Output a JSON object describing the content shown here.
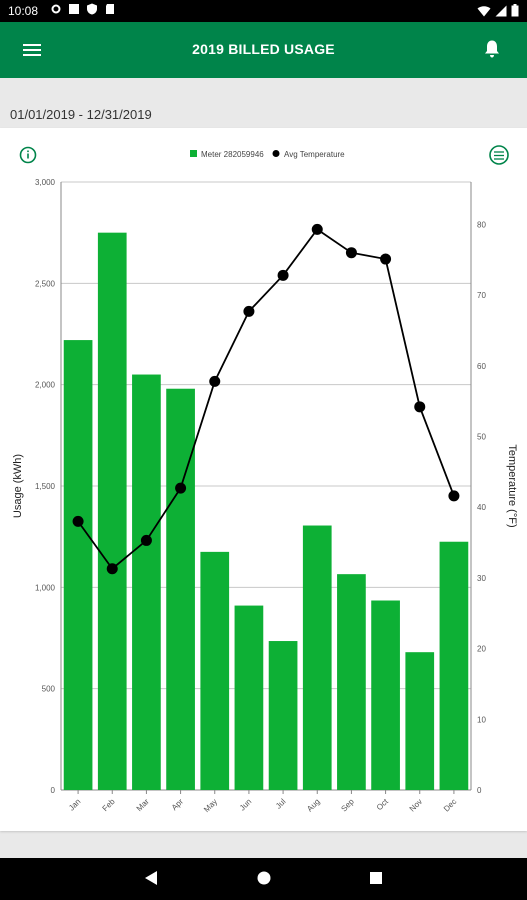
{
  "status_bar": {
    "time": "10:08"
  },
  "app_bar": {
    "title": "2019 BILLED USAGE"
  },
  "date_range": "01/01/2019 - 12/31/2019",
  "colors": {
    "brand": "#00844a",
    "bar": "#0db035",
    "line": "#000000"
  },
  "icons": {
    "menu": "menu-icon",
    "notifications": "bell-icon",
    "info": "info-icon",
    "chart_type": "chart-toggle-icon"
  },
  "chart_data": {
    "type": "bar",
    "categories": [
      "Jan",
      "Feb",
      "Mar",
      "Apr",
      "May",
      "Jun",
      "Jul",
      "Aug",
      "Sep",
      "Oct",
      "Nov",
      "Dec"
    ],
    "series": [
      {
        "name": "Meter 282059946",
        "type": "bar",
        "axis": "left",
        "values": [
          2220,
          2750,
          2050,
          1980,
          1175,
          910,
          735,
          1305,
          1065,
          935,
          680,
          1225
        ]
      },
      {
        "name": "Avg Temperature",
        "type": "line",
        "axis": "right",
        "values": [
          38,
          31.3,
          35.3,
          42.7,
          57.8,
          67.7,
          72.8,
          79.3,
          76,
          75.1,
          54.2,
          41.6
        ]
      }
    ],
    "ylabel": "Usage (kWh)",
    "y2label": "Temperature (°F)",
    "ylim": [
      0,
      3000
    ],
    "y2lim": [
      0,
      86
    ],
    "y_ticks": [
      "0",
      "500",
      "1,000",
      "1,500",
      "2,000",
      "2,500",
      "3,000"
    ],
    "y2_ticks": [
      "0",
      "10",
      "20",
      "30",
      "40",
      "50",
      "60",
      "70",
      "80"
    ],
    "legend_position": "top-center",
    "grid": true
  }
}
